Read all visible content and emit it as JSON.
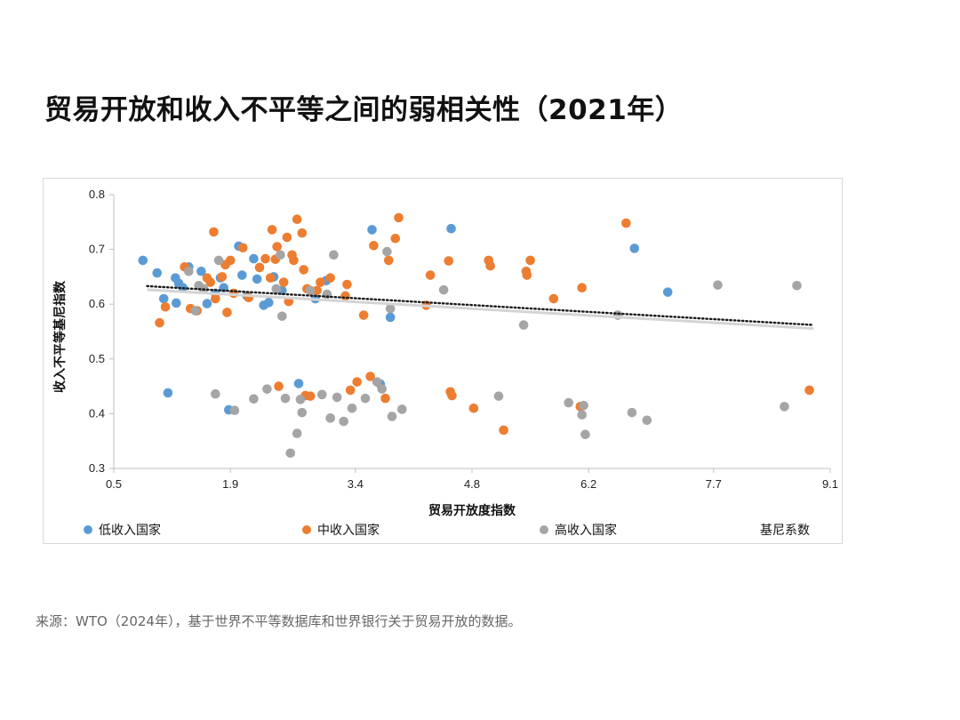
{
  "page": {
    "title": "贸易开放和收入不平等之间的弱相关性（2021年）",
    "source": "来源：WTO（2024年），基于世界不平等数据库和世界银行关于贸易开放的数据。"
  },
  "chart_data": {
    "type": "scatter",
    "xlabel": "贸易开放度指数",
    "ylabel": "收入不平等基尼指数",
    "xlim": [
      0.5,
      9.1
    ],
    "ylim": [
      0.3,
      0.8
    ],
    "xticks": [
      "0.5",
      "1.9",
      "3.4",
      "4.8",
      "6.2",
      "7.7",
      "9.1"
    ],
    "yticks": [
      "0.3",
      "0.4",
      "0.5",
      "0.6",
      "0.7",
      "0.8"
    ],
    "grid": false,
    "legend_position": "bottom",
    "colors": {
      "low": "#5b9bd5",
      "mid": "#ed7d31",
      "high": "#a5a5a5",
      "trend": "#1a1a1a"
    },
    "trendline": {
      "name": "基尼系数",
      "points": [
        [
          0.9,
          0.633
        ],
        [
          8.9,
          0.562
        ]
      ]
    },
    "series": [
      {
        "name": "低收入国家",
        "key": "low",
        "points": [
          [
            0.85,
            0.68
          ],
          [
            1.02,
            0.657
          ],
          [
            1.1,
            0.61
          ],
          [
            1.15,
            0.438
          ],
          [
            1.24,
            0.648
          ],
          [
            1.25,
            0.602
          ],
          [
            1.28,
            0.638
          ],
          [
            1.33,
            0.63
          ],
          [
            1.4,
            0.668
          ],
          [
            1.55,
            0.66
          ],
          [
            1.62,
            0.601
          ],
          [
            1.72,
            0.62
          ],
          [
            1.78,
            0.648
          ],
          [
            1.82,
            0.63
          ],
          [
            1.88,
            0.407
          ],
          [
            2.0,
            0.706
          ],
          [
            2.04,
            0.653
          ],
          [
            2.1,
            0.615
          ],
          [
            2.18,
            0.683
          ],
          [
            2.22,
            0.646
          ],
          [
            2.3,
            0.598
          ],
          [
            2.36,
            0.603
          ],
          [
            2.42,
            0.65
          ],
          [
            2.52,
            0.625
          ],
          [
            2.72,
            0.455
          ],
          [
            2.92,
            0.61
          ],
          [
            3.05,
            0.643
          ],
          [
            3.6,
            0.736
          ],
          [
            3.7,
            0.454
          ],
          [
            3.82,
            0.576
          ],
          [
            4.55,
            0.738
          ],
          [
            6.75,
            0.702
          ],
          [
            7.15,
            0.622
          ]
        ]
      },
      {
        "name": "中收入国家",
        "key": "mid",
        "points": [
          [
            1.05,
            0.566
          ],
          [
            1.12,
            0.595
          ],
          [
            1.35,
            0.668
          ],
          [
            1.42,
            0.592
          ],
          [
            1.5,
            0.588
          ],
          [
            1.62,
            0.648
          ],
          [
            1.66,
            0.64
          ],
          [
            1.7,
            0.732
          ],
          [
            1.72,
            0.61
          ],
          [
            1.8,
            0.65
          ],
          [
            1.84,
            0.672
          ],
          [
            1.86,
            0.585
          ],
          [
            1.9,
            0.68
          ],
          [
            1.94,
            0.62
          ],
          [
            2.05,
            0.703
          ],
          [
            2.12,
            0.612
          ],
          [
            2.25,
            0.667
          ],
          [
            2.32,
            0.683
          ],
          [
            2.38,
            0.648
          ],
          [
            2.4,
            0.736
          ],
          [
            2.44,
            0.682
          ],
          [
            2.46,
            0.705
          ],
          [
            2.48,
            0.45
          ],
          [
            2.54,
            0.64
          ],
          [
            2.58,
            0.722
          ],
          [
            2.6,
            0.605
          ],
          [
            2.64,
            0.69
          ],
          [
            2.66,
            0.68
          ],
          [
            2.7,
            0.755
          ],
          [
            2.76,
            0.73
          ],
          [
            2.78,
            0.663
          ],
          [
            2.8,
            0.433
          ],
          [
            2.82,
            0.628
          ],
          [
            2.86,
            0.432
          ],
          [
            2.94,
            0.625
          ],
          [
            2.98,
            0.64
          ],
          [
            3.1,
            0.648
          ],
          [
            3.28,
            0.615
          ],
          [
            3.3,
            0.636
          ],
          [
            3.34,
            0.443
          ],
          [
            3.42,
            0.458
          ],
          [
            3.5,
            0.58
          ],
          [
            3.58,
            0.468
          ],
          [
            3.62,
            0.707
          ],
          [
            3.76,
            0.428
          ],
          [
            3.8,
            0.68
          ],
          [
            3.88,
            0.72
          ],
          [
            3.92,
            0.758
          ],
          [
            4.25,
            0.598
          ],
          [
            4.3,
            0.653
          ],
          [
            4.52,
            0.679
          ],
          [
            4.54,
            0.44
          ],
          [
            4.56,
            0.433
          ],
          [
            4.82,
            0.41
          ],
          [
            5.0,
            0.68
          ],
          [
            5.02,
            0.67
          ],
          [
            5.18,
            0.37
          ],
          [
            5.45,
            0.66
          ],
          [
            5.46,
            0.653
          ],
          [
            5.5,
            0.68
          ],
          [
            5.78,
            0.61
          ],
          [
            6.1,
            0.413
          ],
          [
            6.12,
            0.63
          ],
          [
            6.65,
            0.748
          ],
          [
            8.85,
            0.443
          ]
        ]
      },
      {
        "name": "高收入国家",
        "key": "high",
        "points": [
          [
            1.4,
            0.66
          ],
          [
            1.48,
            0.588
          ],
          [
            1.52,
            0.634
          ],
          [
            1.58,
            0.628
          ],
          [
            1.72,
            0.436
          ],
          [
            1.76,
            0.68
          ],
          [
            1.95,
            0.406
          ],
          [
            2.18,
            0.427
          ],
          [
            2.34,
            0.445
          ],
          [
            2.45,
            0.628
          ],
          [
            2.5,
            0.69
          ],
          [
            2.52,
            0.578
          ],
          [
            2.56,
            0.428
          ],
          [
            2.62,
            0.328
          ],
          [
            2.7,
            0.364
          ],
          [
            2.74,
            0.426
          ],
          [
            2.76,
            0.402
          ],
          [
            2.86,
            0.625
          ],
          [
            3.0,
            0.435
          ],
          [
            3.06,
            0.618
          ],
          [
            3.1,
            0.392
          ],
          [
            3.14,
            0.69
          ],
          [
            3.18,
            0.43
          ],
          [
            3.26,
            0.386
          ],
          [
            3.36,
            0.41
          ],
          [
            3.52,
            0.428
          ],
          [
            3.66,
            0.458
          ],
          [
            3.72,
            0.445
          ],
          [
            3.78,
            0.696
          ],
          [
            3.82,
            0.592
          ],
          [
            3.84,
            0.395
          ],
          [
            3.96,
            0.408
          ],
          [
            4.46,
            0.626
          ],
          [
            5.12,
            0.432
          ],
          [
            5.42,
            0.562
          ],
          [
            5.96,
            0.42
          ],
          [
            6.12,
            0.398
          ],
          [
            6.14,
            0.415
          ],
          [
            6.16,
            0.362
          ],
          [
            6.55,
            0.58
          ],
          [
            6.72,
            0.402
          ],
          [
            6.9,
            0.388
          ],
          [
            7.75,
            0.635
          ],
          [
            8.55,
            0.413
          ],
          [
            8.7,
            0.634
          ]
        ]
      }
    ]
  }
}
